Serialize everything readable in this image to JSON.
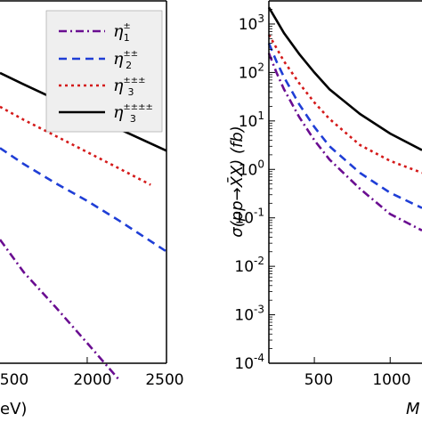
{
  "colors": {
    "eta1": "#6a0d91",
    "eta2": "#1f3ed6",
    "eta3": "#d41a1a",
    "eta4": "#000000",
    "frame": "#000000",
    "legend_bg": "#efefef"
  },
  "chart_data": [
    {
      "type": "line",
      "panel": "left",
      "xlabel_fragment": "eV)",
      "ylabel": "",
      "x_ticks": [
        500,
        2000,
        2500
      ],
      "x_tick_labels": [
        "500",
        "2000",
        "2500"
      ],
      "xlim": [
        1450,
        2500
      ],
      "ylim": [
        0.0001,
        1.4
      ],
      "yscale": "log",
      "legend": {
        "position": "top-right",
        "entries": [
          {
            "symbol": "η",
            "sub": "1",
            "sup": "±",
            "style": "dash-dot",
            "color_key": "eta1"
          },
          {
            "symbol": "η",
            "sub": "2",
            "sup": "±±",
            "style": "dashed",
            "color_key": "eta2"
          },
          {
            "symbol": "η",
            "sub": "3",
            "sup": "±±±",
            "style": "dotted",
            "color_key": "eta3"
          },
          {
            "symbol": "η",
            "sub": "3",
            "sup": "±±±±",
            "style": "solid",
            "color_key": "eta4"
          }
        ]
      },
      "series": [
        {
          "style": "dash-dot",
          "color_key": "eta1",
          "x": [
            1450,
            1600,
            1800,
            2000,
            2200
          ],
          "y": [
            0.0026,
            0.0011,
            0.00044,
            0.00017,
            6.5e-05
          ]
        },
        {
          "style": "dashed",
          "color_key": "eta2",
          "x": [
            1450,
            1600,
            1800,
            2000,
            2200,
            2500
          ],
          "y": [
            0.029,
            0.019,
            0.0115,
            0.0072,
            0.0043,
            0.0019
          ]
        },
        {
          "style": "dotted",
          "color_key": "eta3",
          "x": [
            1450,
            1600,
            1800,
            2000,
            2200,
            2400
          ],
          "y": [
            0.086,
            0.061,
            0.04,
            0.026,
            0.017,
            0.011
          ]
        },
        {
          "style": "solid",
          "color_key": "eta4",
          "x": [
            1450,
            1600,
            1800,
            2000,
            2200,
            2500
          ],
          "y": [
            0.21,
            0.155,
            0.105,
            0.071,
            0.048,
            0.027
          ]
        }
      ]
    },
    {
      "type": "line",
      "panel": "right",
      "ylabel": "σ(pp→X̄X) (fb)",
      "xlabel_fragment": "M",
      "x_ticks": [
        500,
        1000
      ],
      "x_tick_labels": [
        "500",
        "1000"
      ],
      "xlim": [
        200,
        1210
      ],
      "ylim": [
        0.0001,
        3000
      ],
      "yscale": "log",
      "y_ticks": [
        0.0001,
        0.001,
        0.01,
        0.1,
        1,
        10,
        100,
        1000
      ],
      "y_tick_labels": [
        {
          "base": "10",
          "exp": "-4"
        },
        {
          "base": "10",
          "exp": "-3"
        },
        {
          "base": "10",
          "exp": "-2"
        },
        {
          "base": "10",
          "exp": "-1"
        },
        {
          "base": "10",
          "exp": "0"
        },
        {
          "base": "10",
          "exp": "1"
        },
        {
          "base": "10",
          "exp": "2"
        },
        {
          "base": "10",
          "exp": "3"
        }
      ],
      "series": [
        {
          "style": "dash-dot",
          "color_key": "eta1",
          "x": [
            200,
            250,
            300,
            400,
            500,
            600,
            800,
            1000,
            1210
          ],
          "y": [
            250,
            100,
            45,
            12,
            4,
            1.6,
            0.4,
            0.12,
            0.055
          ]
        },
        {
          "style": "dashed",
          "color_key": "eta2",
          "x": [
            200,
            250,
            300,
            400,
            500,
            600,
            800,
            1000,
            1210
          ],
          "y": [
            400,
            170,
            80,
            22,
            7.5,
            3,
            0.85,
            0.33,
            0.16
          ]
        },
        {
          "style": "dotted",
          "color_key": "eta3",
          "x": [
            200,
            250,
            300,
            400,
            500,
            600,
            800,
            1000,
            1210
          ],
          "y": [
            600,
            320,
            170,
            60,
            24,
            11,
            3.2,
            1.5,
            0.85
          ]
        },
        {
          "style": "solid",
          "color_key": "eta4",
          "x": [
            200,
            250,
            300,
            400,
            500,
            600,
            800,
            1000,
            1210
          ],
          "y": [
            2200,
            1200,
            650,
            240,
            100,
            45,
            14,
            5.5,
            2.5
          ]
        }
      ]
    }
  ]
}
